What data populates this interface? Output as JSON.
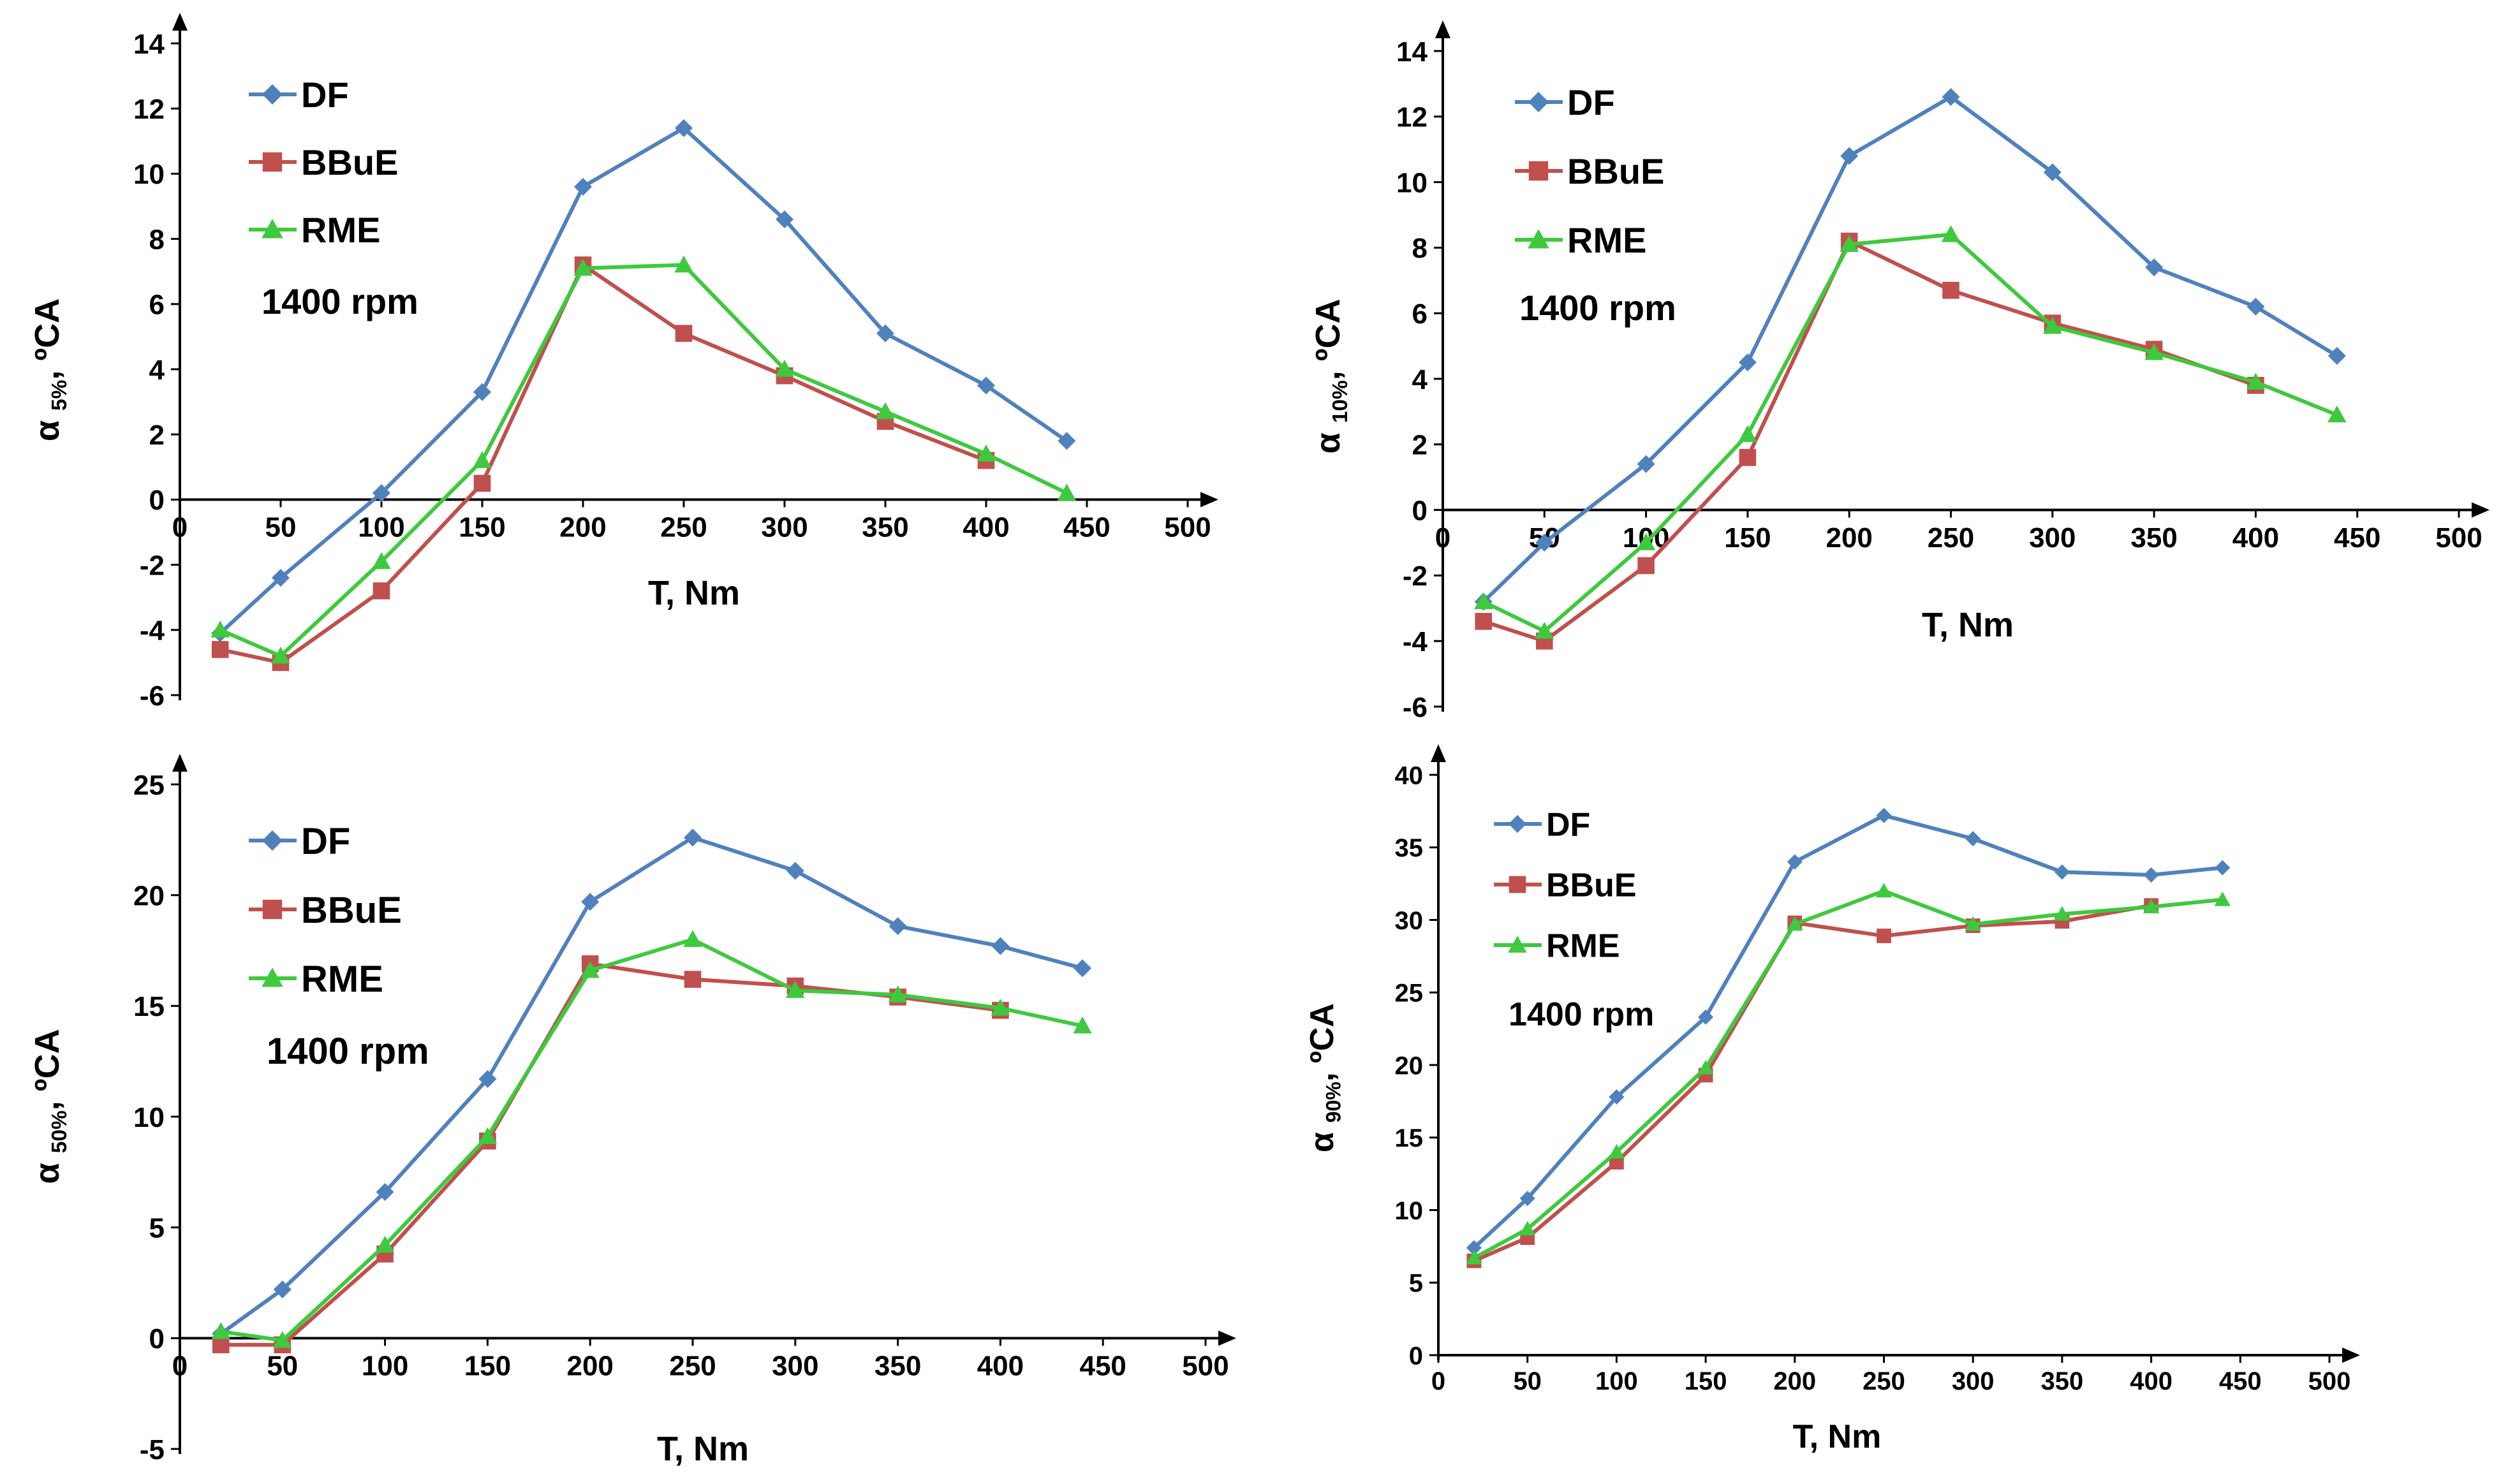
{
  "chart_data": [
    {
      "type": "line",
      "title": "",
      "xlabel": "T, Nm",
      "ylabel_symbol": "α",
      "ylabel_sub": "5%",
      "ylabel_unit": ", ºCA",
      "annotation": "1400 rpm",
      "xlim": [
        0,
        500
      ],
      "ylim": [
        -6,
        14
      ],
      "xticks": [
        0,
        50,
        100,
        150,
        200,
        250,
        300,
        350,
        400,
        450,
        500
      ],
      "yticks": [
        -6,
        -4,
        -2,
        0,
        2,
        4,
        6,
        8,
        10,
        12,
        14
      ],
      "legend_position": "top-left",
      "series": [
        {
          "name": "DF",
          "color": "#4f81bd",
          "marker": "diamond",
          "x": [
            20,
            50,
            100,
            150,
            200,
            250,
            300,
            350,
            400,
            440
          ],
          "y": [
            -4.1,
            -2.4,
            0.2,
            3.3,
            9.6,
            11.4,
            8.6,
            5.1,
            3.5,
            1.8
          ]
        },
        {
          "name": "BBuE",
          "color": "#c0504d",
          "marker": "square",
          "x": [
            20,
            50,
            100,
            150,
            200,
            250,
            300,
            350,
            400
          ],
          "y": [
            -4.6,
            -5.0,
            -2.8,
            0.5,
            7.2,
            5.1,
            3.8,
            2.4,
            1.2
          ]
        },
        {
          "name": "RME",
          "color": "#3ec93e",
          "marker": "triangle",
          "x": [
            20,
            50,
            100,
            150,
            200,
            250,
            300,
            350,
            400,
            440
          ],
          "y": [
            -4.0,
            -4.8,
            -1.9,
            1.2,
            7.1,
            7.2,
            4.0,
            2.7,
            1.4,
            0.2
          ]
        }
      ]
    },
    {
      "type": "line",
      "title": "",
      "xlabel": "T, Nm",
      "ylabel_symbol": "α",
      "ylabel_sub": "10%",
      "ylabel_unit": ", ºCA",
      "annotation": "1400 rpm",
      "xlim": [
        0,
        500
      ],
      "ylim": [
        -6,
        14
      ],
      "xticks": [
        0,
        50,
        100,
        150,
        200,
        250,
        300,
        350,
        400,
        450,
        500
      ],
      "yticks": [
        -6,
        -4,
        -2,
        0,
        2,
        4,
        6,
        8,
        10,
        12,
        14
      ],
      "legend_position": "top-left",
      "series": [
        {
          "name": "DF",
          "color": "#4f81bd",
          "marker": "diamond",
          "x": [
            20,
            50,
            100,
            150,
            200,
            250,
            300,
            350,
            400,
            440
          ],
          "y": [
            -2.8,
            -1.0,
            1.4,
            4.5,
            10.8,
            12.6,
            10.3,
            7.4,
            6.2,
            4.7
          ]
        },
        {
          "name": "BBuE",
          "color": "#c0504d",
          "marker": "square",
          "x": [
            20,
            50,
            100,
            150,
            200,
            250,
            300,
            350,
            400
          ],
          "y": [
            -3.4,
            -4.0,
            -1.7,
            1.6,
            8.2,
            6.7,
            5.7,
            4.9,
            3.8
          ]
        },
        {
          "name": "RME",
          "color": "#3ec93e",
          "marker": "triangle",
          "x": [
            20,
            50,
            100,
            150,
            200,
            250,
            300,
            350,
            400,
            440
          ],
          "y": [
            -2.8,
            -3.7,
            -1.0,
            2.3,
            8.1,
            8.4,
            5.6,
            4.8,
            3.9,
            2.9
          ]
        }
      ]
    },
    {
      "type": "line",
      "title": "",
      "xlabel": "T, Nm",
      "ylabel_symbol": "α",
      "ylabel_sub": "50%",
      "ylabel_unit": ", ºCA",
      "annotation": "1400 rpm",
      "xlim": [
        0,
        500
      ],
      "ylim": [
        -5,
        25
      ],
      "xticks": [
        0,
        50,
        100,
        150,
        200,
        250,
        300,
        350,
        400,
        450,
        500
      ],
      "yticks": [
        -5,
        0,
        5,
        10,
        15,
        20,
        25
      ],
      "legend_position": "top-left",
      "series": [
        {
          "name": "DF",
          "color": "#4f81bd",
          "marker": "diamond",
          "x": [
            20,
            50,
            100,
            150,
            200,
            250,
            300,
            350,
            400,
            440
          ],
          "y": [
            0.2,
            2.2,
            6.6,
            11.7,
            19.7,
            22.6,
            21.1,
            18.6,
            17.7,
            16.7
          ]
        },
        {
          "name": "BBuE",
          "color": "#c0504d",
          "marker": "square",
          "x": [
            20,
            50,
            100,
            150,
            200,
            250,
            300,
            350,
            400
          ],
          "y": [
            -0.3,
            -0.3,
            3.8,
            8.9,
            16.9,
            16.2,
            15.9,
            15.4,
            14.8
          ]
        },
        {
          "name": "RME",
          "color": "#3ec93e",
          "marker": "triangle",
          "x": [
            20,
            50,
            100,
            150,
            200,
            250,
            300,
            350,
            400,
            440
          ],
          "y": [
            0.3,
            -0.1,
            4.2,
            9.1,
            16.6,
            18.0,
            15.7,
            15.5,
            14.9,
            14.1
          ]
        }
      ]
    },
    {
      "type": "line",
      "title": "",
      "xlabel": "T, Nm",
      "ylabel_symbol": "α",
      "ylabel_sub": "90%",
      "ylabel_unit": ", ºCA",
      "annotation": "1400 rpm",
      "xlim": [
        0,
        500
      ],
      "ylim": [
        0,
        40
      ],
      "xticks": [
        0,
        50,
        100,
        150,
        200,
        250,
        300,
        350,
        400,
        450,
        500
      ],
      "yticks": [
        0,
        5,
        10,
        15,
        20,
        25,
        30,
        35,
        40
      ],
      "legend_position": "top-left",
      "series": [
        {
          "name": "DF",
          "color": "#4f81bd",
          "marker": "diamond",
          "x": [
            20,
            50,
            100,
            150,
            200,
            250,
            300,
            350,
            400,
            440
          ],
          "y": [
            7.4,
            10.8,
            17.8,
            23.3,
            34.0,
            37.2,
            35.6,
            33.3,
            33.1,
            33.6
          ]
        },
        {
          "name": "BBuE",
          "color": "#c0504d",
          "marker": "square",
          "x": [
            20,
            50,
            100,
            150,
            200,
            250,
            300,
            350,
            400
          ],
          "y": [
            6.5,
            8.1,
            13.3,
            19.3,
            29.8,
            28.9,
            29.6,
            29.9,
            31.0
          ]
        },
        {
          "name": "RME",
          "color": "#3ec93e",
          "marker": "triangle",
          "x": [
            20,
            50,
            100,
            150,
            200,
            250,
            300,
            350,
            400,
            440
          ],
          "y": [
            6.7,
            8.7,
            14.0,
            19.8,
            29.7,
            32.0,
            29.7,
            30.4,
            30.9,
            31.4
          ]
        }
      ]
    }
  ]
}
